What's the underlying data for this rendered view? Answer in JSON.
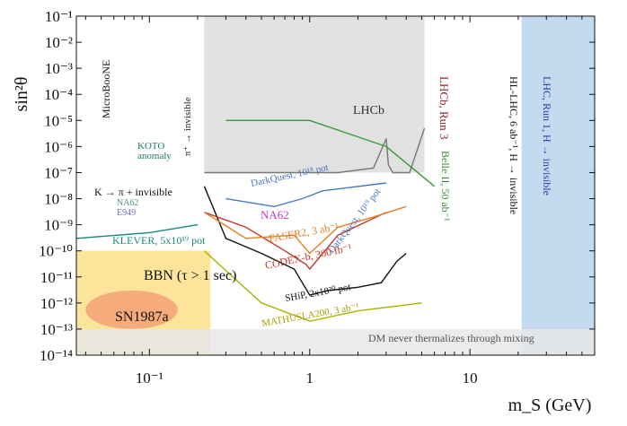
{
  "chart_data": {
    "type": "line",
    "title": "",
    "xlabel": "m_S (GeV)",
    "ylabel": "sin²θ",
    "xscale": "log",
    "yscale": "log",
    "xlim": [
      0.035,
      60
    ],
    "ylim": [
      1e-14,
      0.1
    ],
    "x_ticks": [
      0.1,
      1,
      10
    ],
    "x_tick_labels": [
      "10⁻¹",
      "1",
      "10"
    ],
    "y_ticks": [
      1e-14,
      1e-13,
      1e-12,
      1e-11,
      1e-10,
      1e-09,
      1e-08,
      1e-07,
      1e-06,
      1e-05,
      0.0001,
      0.001,
      0.01,
      0.1
    ],
    "y_tick_labels": [
      "10⁻¹⁴",
      "10⁻¹³",
      "10⁻¹²",
      "10⁻¹¹",
      "10⁻¹⁰",
      "10⁻⁹",
      "10⁻⁸",
      "10⁻⁷",
      "10⁻⁶",
      "10⁻⁵",
      "10⁻⁴",
      "10⁻³",
      "10⁻²",
      "10⁻¹"
    ],
    "grid": false,
    "regions": [
      {
        "name": "LHC, Run 1, H → invisible",
        "color": "#b9d4ec",
        "x": [
          21,
          60
        ],
        "y": [
          1e-14,
          0.1
        ]
      },
      {
        "name": "LHCb",
        "color": "#dcdcdc",
        "x": [
          0.22,
          5.2
        ],
        "y": [
          1e-07,
          0.1
        ]
      },
      {
        "name": "BBN (τ > 1 sec)",
        "color": "#fbe089",
        "x": [
          0.035,
          0.24
        ],
        "y": [
          1e-14,
          1e-10
        ]
      },
      {
        "name": "SN1987a",
        "color": "#f5a479",
        "x": [
          0.04,
          0.15
        ],
        "y": [
          1e-13,
          3e-12
        ]
      },
      {
        "name": "DM never thermalizes through mixing",
        "color": "#e7e7e7",
        "x": [
          0.035,
          60
        ],
        "y": [
          1e-14,
          1e-13
        ]
      }
    ],
    "series": [
      {
        "name": "LHCb",
        "color": "#777777",
        "x": [
          0.22,
          1.5,
          2.5,
          3.0,
          3.1,
          3.3,
          4.2,
          5.2
        ],
        "y": [
          1e-07,
          1e-07,
          1.5e-07,
          2e-06,
          2e-07,
          1e-07,
          1e-07,
          5e-06
        ]
      },
      {
        "name": "SHiP, 2x10²⁰ pot",
        "color": "#111111",
        "x": [
          0.22,
          0.3,
          0.5,
          0.8,
          1.0,
          1.3,
          2.0,
          2.8,
          3.5,
          4.0
        ],
        "y": [
          3e-08,
          3e-10,
          8e-11,
          2e-11,
          2e-12,
          3e-12,
          4e-12,
          6e-12,
          4e-11,
          8e-11
        ]
      },
      {
        "name": "CODEX-b, 300 fb⁻¹",
        "color": "#c0392b",
        "x": [
          0.22,
          0.4,
          0.7,
          0.95,
          1.0,
          1.5,
          3.0
        ],
        "y": [
          3e-09,
          8e-10,
          1e-10,
          3e-11,
          2e-11,
          4e-10,
          3e-09
        ]
      },
      {
        "name": "FASER2, 3 ab⁻¹",
        "color": "#e67e22",
        "x": [
          0.22,
          0.4,
          0.8,
          1.0,
          1.5,
          2.5,
          4.0
        ],
        "y": [
          3e-09,
          3e-10,
          4e-10,
          8e-11,
          8e-10,
          2e-09,
          5e-09
        ]
      },
      {
        "name": "MATHUSLA200, 3 ab⁻¹",
        "color": "#a8b400",
        "x": [
          0.22,
          0.5,
          1.0,
          2.0,
          5.0
        ],
        "y": [
          1e-10,
          1e-12,
          2e-13,
          5e-13,
          1e-12
        ]
      },
      {
        "name": "DarkQuest, 10¹⁸ pot",
        "color": "#4a78c0",
        "x": [
          0.3,
          0.6,
          0.9,
          1.2,
          3.0
        ],
        "y": [
          1e-08,
          5e-09,
          1e-08,
          2e-08,
          4e-08
        ]
      },
      {
        "name": "Belle II, 50 ab⁻¹",
        "color": "#3a9a3a",
        "x": [
          0.3,
          1.0,
          3.0,
          6.0
        ],
        "y": [
          1e-05,
          1e-05,
          1e-06,
          3e-08
        ]
      },
      {
        "name": "KLEVER, 5x10¹⁹ pot",
        "color": "#1a8a7a",
        "x": [
          0.035,
          0.1,
          0.2
        ],
        "y": [
          3e-10,
          5e-10,
          1e-09
        ]
      }
    ],
    "annotations": [
      {
        "text": "LHCb",
        "color": "#333333"
      },
      {
        "text": "LHCb, Run 3",
        "color": "#8b2323"
      },
      {
        "text": "HL-LHC, 6 ab⁻¹, H → invisible",
        "color": "#111111"
      },
      {
        "text": "LHC, Run 1, H → invisible",
        "color": "#1f3fb0"
      },
      {
        "text": "Belle II, 50 ab⁻¹",
        "color": "#3a8a3a"
      },
      {
        "text": "MicroBooNE",
        "color": "#111111"
      },
      {
        "text": "π⁺ → invisible",
        "color": "#222222"
      },
      {
        "text": "KOTO",
        "color": "#1a7a6a"
      },
      {
        "text": "anomaly",
        "color": "#1a7a6a"
      },
      {
        "text": "K → π + invisible",
        "color": "#111111"
      },
      {
        "text": "NA62",
        "color": "#4a9a7a"
      },
      {
        "text": "E949",
        "color": "#6a6ac0"
      },
      {
        "text": "KLEVER, 5x10¹⁹ pot",
        "color": "#1a8a7a"
      },
      {
        "text": "DarkQuest, 10¹⁸ pot",
        "color": "#4a78c0"
      },
      {
        "text": "NA62",
        "color": "#cc33cc"
      },
      {
        "text": "FASER2, 3 ab⁻¹",
        "color": "#e67e22"
      },
      {
        "text": "DarkQuest, 10¹⁹ pot",
        "color": "#4a78c0"
      },
      {
        "text": "CODEX-b, 300 fb⁻¹",
        "color": "#c0392b"
      },
      {
        "text": "SHiP, 2x10²⁰ pot",
        "color": "#111111"
      },
      {
        "text": "MATHUSLA200, 3 ab⁻¹",
        "color": "#a8a000"
      },
      {
        "text": "BBN (τ > 1 sec)",
        "color": "#111111"
      },
      {
        "text": "SN1987a",
        "color": "#111111"
      },
      {
        "text": "DM never thermalizes through mixing",
        "color": "#555555"
      }
    ]
  }
}
